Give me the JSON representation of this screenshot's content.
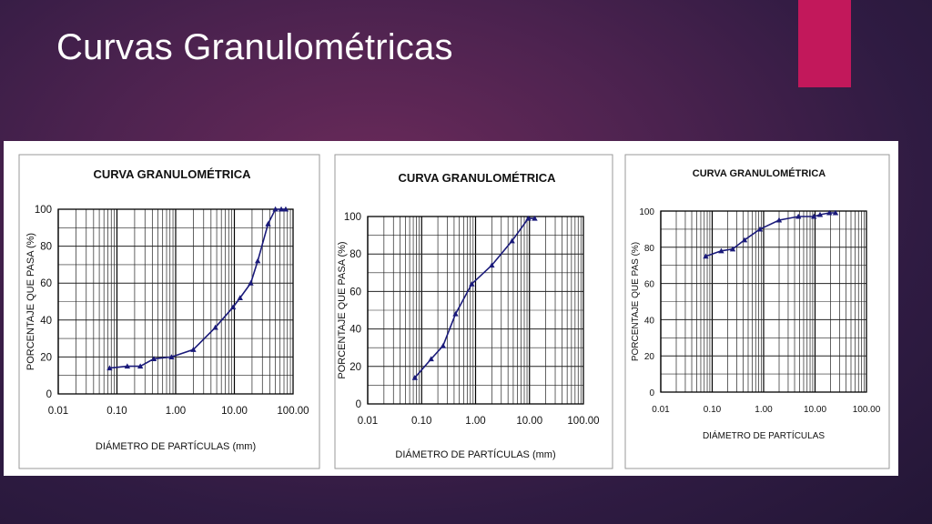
{
  "slide": {
    "title": "Curvas Granulométricas",
    "accent_color": "#c2185b"
  },
  "chart_data": [
    {
      "type": "line",
      "title": "CURVA GRANULOMÉTRICA",
      "xlabel": "DIÁMETRO DE PARTÍCULAS  (mm)",
      "ylabel": "PORCENTAJE  QUE  PASA  (%)",
      "xscale": "log",
      "xlim": [
        0.01,
        100
      ],
      "ylim": [
        0,
        100
      ],
      "xticks": [
        "0.01",
        "0.10",
        "1.00",
        "10.00",
        "100.00"
      ],
      "yticks": [
        "0",
        "20",
        "40",
        "60",
        "80",
        "100"
      ],
      "grid": true,
      "series": [
        {
          "color": "#1a1a7a",
          "marker": "triangle",
          "x": [
            0.075,
            0.15,
            0.25,
            0.425,
            0.85,
            2.0,
            4.75,
            9.5,
            12.5,
            19.0,
            25.0,
            37.5,
            50.0,
            63.0,
            75.0
          ],
          "y": [
            14,
            15,
            15,
            19,
            20,
            24,
            36,
            47,
            52,
            60,
            72,
            92,
            100,
            100,
            100
          ]
        }
      ]
    },
    {
      "type": "line",
      "title": "CURVA GRANULOMÉTRICA",
      "xlabel": "DIÁMETRO  DE  PARTÍCULAS  (mm)",
      "ylabel": "PORCENTAJE  QUE  PASA  (%)",
      "xscale": "log",
      "xlim": [
        0.01,
        100
      ],
      "ylim": [
        0,
        100
      ],
      "xticks": [
        "0.01",
        "0.10",
        "1.00",
        "10.00",
        "100.00"
      ],
      "yticks": [
        "0",
        "20",
        "40",
        "60",
        "80",
        "100"
      ],
      "grid": true,
      "series": [
        {
          "color": "#1a1a7a",
          "marker": "triangle",
          "x": [
            0.075,
            0.15,
            0.25,
            0.425,
            0.85,
            2.0,
            4.75,
            9.5,
            12.5
          ],
          "y": [
            14,
            24,
            31,
            48,
            64,
            74,
            87,
            99,
            99
          ]
        }
      ]
    },
    {
      "type": "line",
      "title": "CURVA GRANULOMÉTRICA",
      "xlabel": "DIÁMETRO DE PARTÍCULAS",
      "ylabel": "PORCENTAJE  QUE  PAS  (%)",
      "xscale": "log",
      "xlim": [
        0.01,
        100
      ],
      "ylim": [
        0,
        100
      ],
      "xticks": [
        "0.01",
        "0.10",
        "1.00",
        "10.00",
        "100.00"
      ],
      "yticks": [
        "0",
        "20",
        "40",
        "60",
        "80",
        "100"
      ],
      "grid": true,
      "series": [
        {
          "color": "#1a1a7a",
          "marker": "triangle",
          "x": [
            0.075,
            0.15,
            0.25,
            0.425,
            0.85,
            2.0,
            4.75,
            9.5,
            12.5,
            19.0,
            25.0
          ],
          "y": [
            75,
            78,
            79,
            84,
            90,
            95,
            97,
            97,
            98,
            99,
            99
          ]
        }
      ]
    }
  ]
}
